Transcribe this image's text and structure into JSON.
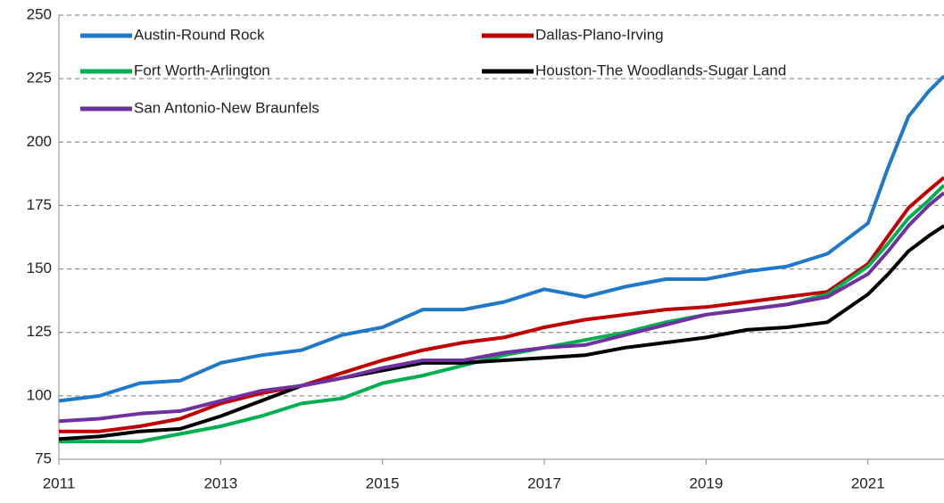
{
  "chart_data": {
    "type": "line",
    "x": [
      2011,
      2011.5,
      2012,
      2012.5,
      2013,
      2013.5,
      2014,
      2014.5,
      2015,
      2015.5,
      2016,
      2016.5,
      2017,
      2017.5,
      2018,
      2018.5,
      2019,
      2019.5,
      2020,
      2020.5,
      2021,
      2021.25,
      2021.5,
      2021.75,
      2021.94
    ],
    "series": [
      {
        "name": "Austin-Round Rock",
        "color": "#1f78c8",
        "values": [
          98,
          100,
          105,
          106,
          113,
          116,
          118,
          124,
          127,
          134,
          134,
          137,
          142,
          139,
          143,
          146,
          146,
          149,
          151,
          156,
          168,
          190,
          210,
          220,
          226
        ]
      },
      {
        "name": "Dallas-Plano-Irving",
        "color": "#c00000",
        "values": [
          86,
          86,
          88,
          91,
          97,
          101,
          104,
          109,
          114,
          118,
          121,
          123,
          127,
          130,
          132,
          134,
          135,
          137,
          139,
          141,
          152,
          163,
          174,
          181,
          186
        ]
      },
      {
        "name": "Fort Worth-Arlington",
        "color": "#00b050",
        "values": [
          82,
          82,
          82,
          85,
          88,
          92,
          97,
          99,
          105,
          108,
          112,
          116,
          119,
          122,
          125,
          129,
          132,
          134,
          136,
          140,
          151,
          160,
          170,
          177,
          183
        ]
      },
      {
        "name": "Houston-The Woodlands-Sugar Land",
        "color": "#000000",
        "values": [
          83,
          84,
          86,
          87,
          92,
          98,
          104,
          107,
          110,
          113,
          113,
          114,
          115,
          116,
          119,
          121,
          123,
          126,
          127,
          129,
          140,
          148,
          157,
          163,
          167
        ]
      },
      {
        "name": "San Antonio-New Braunfels",
        "color": "#7030a0",
        "values": [
          90,
          91,
          93,
          94,
          98,
          102,
          104,
          107,
          111,
          114,
          114,
          117,
          119,
          120,
          124,
          128,
          132,
          134,
          136,
          139,
          148,
          157,
          167,
          175,
          180
        ]
      }
    ],
    "xlim": [
      2011,
      2021.94
    ],
    "xticks": [
      2011,
      2013,
      2015,
      2017,
      2019,
      2021
    ],
    "ylim": [
      75,
      250
    ],
    "yticks": [
      75,
      100,
      125,
      150,
      175,
      200,
      225,
      250
    ],
    "grid": true,
    "legend": "top"
  }
}
